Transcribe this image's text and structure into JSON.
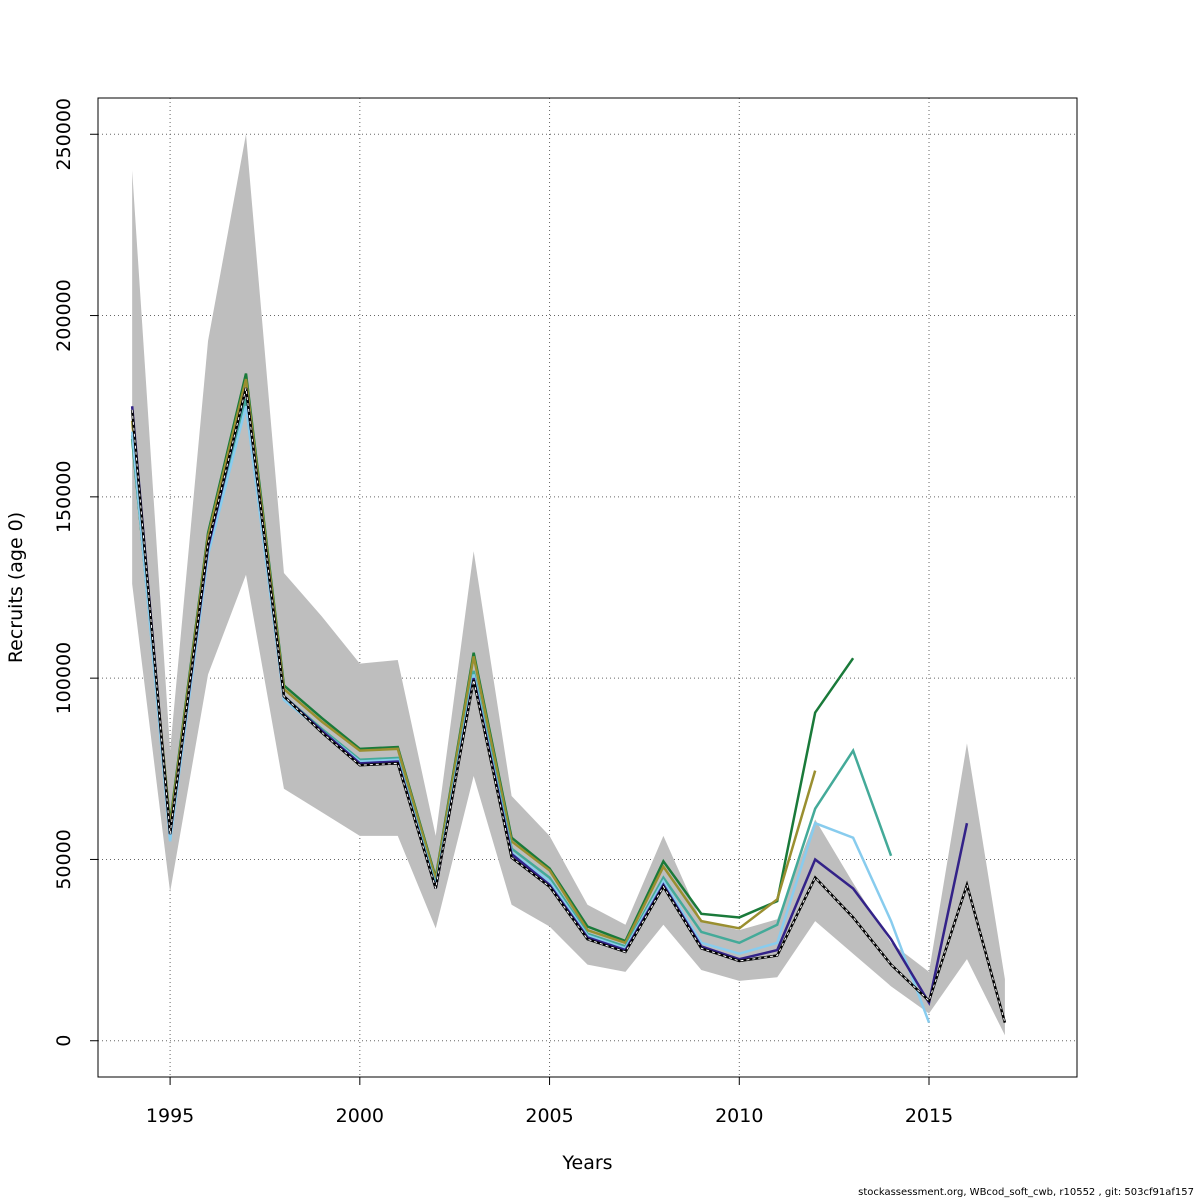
{
  "chart_data": {
    "type": "line",
    "xlabel": "Years",
    "ylabel": "Recruits (age 0)",
    "xlim": [
      1993.1,
      2018.9
    ],
    "ylim": [
      -10000,
      260000
    ],
    "x_ticks": [
      1995,
      2000,
      2005,
      2010,
      2015
    ],
    "y_ticks": [
      0,
      50000,
      100000,
      150000,
      200000,
      250000
    ],
    "grid": true,
    "band": {
      "color": "#bebebe",
      "x": [
        1994,
        1995,
        1996,
        1997,
        1998,
        1999,
        2000,
        2001,
        2002,
        2003,
        2004,
        2005,
        2006,
        2007,
        2008,
        2009,
        2010,
        2011,
        2012,
        2013,
        2014,
        2015,
        2016,
        2017
      ],
      "lower": [
        126000,
        41000,
        101000,
        128500,
        69500,
        63000,
        56500,
        56500,
        31000,
        73000,
        37500,
        31500,
        21000,
        19000,
        32000,
        19500,
        16500,
        17500,
        33000,
        24000,
        15000,
        7500,
        22500,
        1500
      ],
      "upper": [
        240000,
        80000,
        193000,
        250000,
        129000,
        117000,
        104000,
        105000,
        56500,
        135000,
        67500,
        56500,
        37500,
        32000,
        56500,
        33000,
        30500,
        33500,
        61000,
        43500,
        27000,
        19000,
        82000,
        17000
      ]
    },
    "series": [
      {
        "color": "#1a7a3a",
        "dash": false,
        "x": [
          1994,
          1995,
          1996,
          1997,
          1998,
          1999,
          2000,
          2001,
          2002,
          2003,
          2004,
          2005,
          2006,
          2007,
          2008,
          2009,
          2010,
          2011,
          2012,
          2013
        ],
        "values": [
          166000,
          60000,
          140000,
          184000,
          98000,
          89000,
          80500,
          81000,
          45000,
          107000,
          56000,
          47500,
          31500,
          27500,
          49500,
          35000,
          34000,
          38500,
          90500,
          105500
        ]
      },
      {
        "color": "#9a8f30",
        "dash": false,
        "x": [
          1994,
          1995,
          1996,
          1997,
          1998,
          1999,
          2000,
          2001,
          2002,
          2003,
          2004,
          2005,
          2006,
          2007,
          2008,
          2009,
          2010,
          2011,
          2012
        ],
        "values": [
          171000,
          59000,
          139000,
          182500,
          97000,
          88000,
          80000,
          80500,
          44500,
          106000,
          55000,
          47000,
          30500,
          27000,
          48000,
          33000,
          31000,
          39000,
          74500
        ]
      },
      {
        "color": "#44aa99",
        "dash": false,
        "x": [
          1994,
          1995,
          1996,
          1997,
          1998,
          1999,
          2000,
          2001,
          2002,
          2003,
          2004,
          2005,
          2006,
          2007,
          2008,
          2009,
          2010,
          2011,
          2012,
          2013,
          2014
        ],
        "values": [
          167000,
          57000,
          136000,
          177000,
          95000,
          86000,
          77500,
          78000,
          43000,
          102000,
          53000,
          45000,
          29500,
          26000,
          45000,
          30000,
          27000,
          32000,
          64000,
          80000,
          51000
        ]
      },
      {
        "color": "#88ccee",
        "dash": false,
        "x": [
          1994,
          1995,
          1996,
          1997,
          1998,
          1999,
          2000,
          2001,
          2002,
          2003,
          2004,
          2005,
          2006,
          2007,
          2008,
          2009,
          2010,
          2011,
          2012,
          2013,
          2014,
          2015
        ],
        "values": [
          168000,
          55000,
          134000,
          175000,
          94000,
          85500,
          77000,
          77500,
          42500,
          101000,
          52000,
          44000,
          29000,
          25500,
          44000,
          27000,
          24000,
          27000,
          60000,
          56000,
          33000,
          5000
        ]
      },
      {
        "color": "#332288",
        "dash": false,
        "x": [
          1994,
          1995,
          1996,
          1997,
          1998,
          1999,
          2000,
          2001,
          2002,
          2003,
          2004,
          2005,
          2006,
          2007,
          2008,
          2009,
          2010,
          2011,
          2012,
          2013,
          2014,
          2015,
          2016
        ],
        "values": [
          175000,
          57000,
          136000,
          180000,
          95000,
          85500,
          76500,
          77000,
          42000,
          100000,
          51500,
          43000,
          28500,
          25000,
          43000,
          26000,
          22500,
          25000,
          50000,
          42000,
          28000,
          10500,
          60000
        ]
      },
      {
        "color": "#222222",
        "dash": true,
        "x": [
          1994,
          1995,
          1996,
          1997,
          1998,
          1999,
          2000,
          2001,
          2002,
          2003,
          2004,
          2005,
          2006,
          2007,
          2008,
          2009,
          2010,
          2011,
          2012,
          2013,
          2014,
          2015,
          2016,
          2017
        ],
        "values": [
          174000,
          57000,
          137000,
          180000,
          95000,
          85000,
          76000,
          76500,
          42000,
          99500,
          50500,
          42500,
          28000,
          24500,
          42500,
          25500,
          22000,
          23500,
          45000,
          34000,
          21000,
          11000,
          43000,
          5000
        ]
      }
    ]
  },
  "footer": {
    "text": "stockassessment.org, WBcod_soft_cwb, r10552 , git: 503cf91af157"
  }
}
